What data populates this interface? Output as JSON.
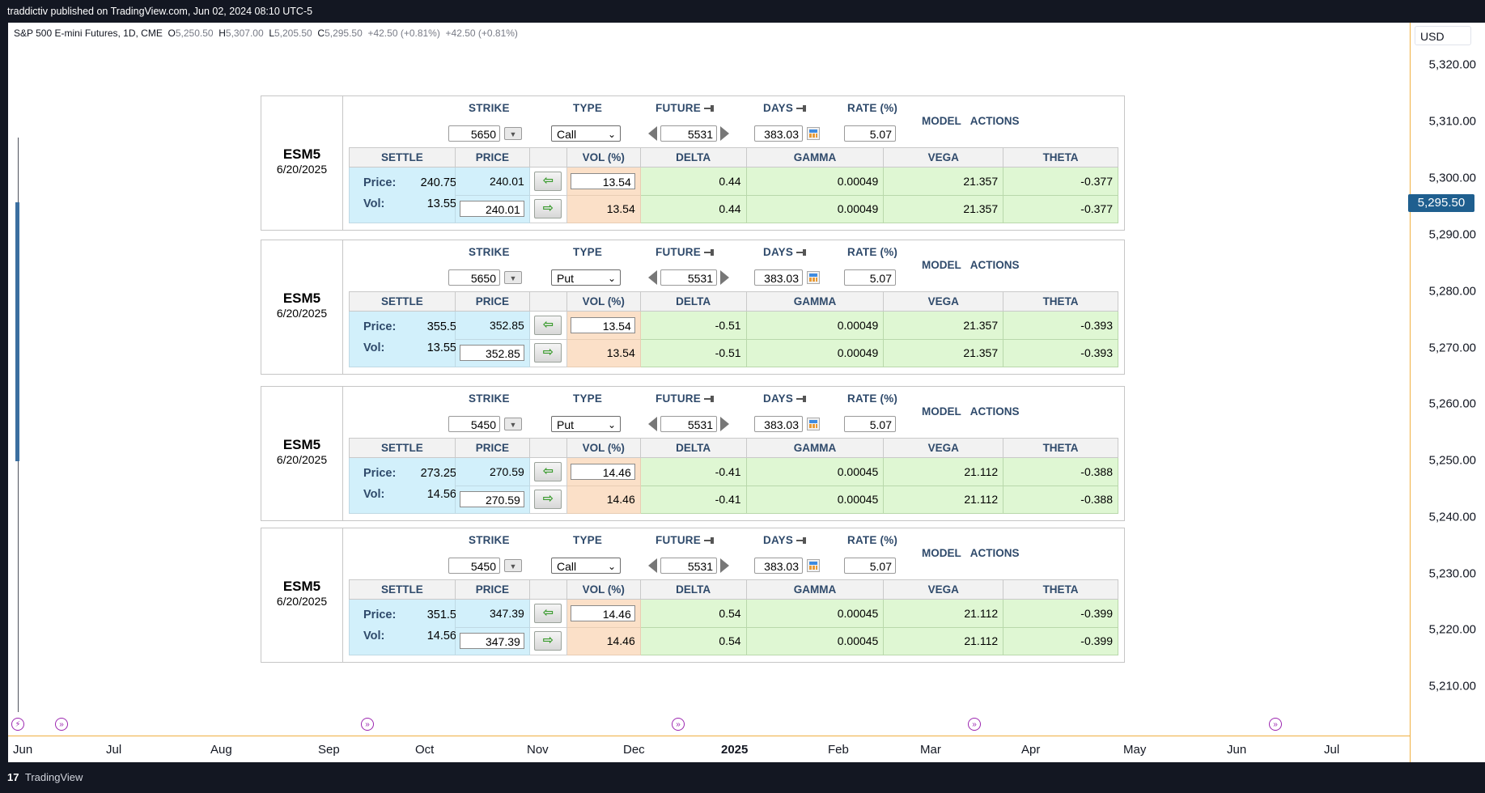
{
  "topbar": {
    "text": "traddictiv published on TradingView.com, Jun 02, 2024 08:10 UTC-5"
  },
  "symbol_header": {
    "title": "S&P 500 E-mini Futures, 1D, CME",
    "o_label": "O",
    "o": "5,250.50",
    "h_label": "H",
    "h": "5,307.00",
    "l_label": "L",
    "l": "5,205.50",
    "c_label": "C",
    "c": "5,295.50",
    "change": "+42.50 (+0.81%)",
    "change2": "+42.50 (+0.81%)"
  },
  "price_axis": {
    "currency": "USD",
    "ticks": [
      "5,320.00",
      "5,310.00",
      "5,300.00",
      "5,290.00",
      "5,280.00",
      "5,270.00",
      "5,260.00",
      "5,250.00",
      "5,240.00",
      "5,230.00",
      "5,220.00",
      "5,210.00"
    ],
    "current": "5,295.50",
    "current_color": "#1f5f8f"
  },
  "time_axis": {
    "labels": [
      "Jun",
      "Jul",
      "Aug",
      "Sep",
      "Oct",
      "Nov",
      "Dec",
      "2025",
      "Feb",
      "Mar",
      "Apr",
      "May",
      "Jun",
      "Jul"
    ]
  },
  "footer": {
    "brand": "TradingView"
  },
  "calculator": {
    "headers": {
      "strike": "STRIKE",
      "type": "TYPE",
      "future": "FUTURE",
      "days": "DAYS",
      "rate": "RATE (%)",
      "model": "MODEL",
      "actions": "ACTIONS"
    },
    "grid_headers": {
      "settle": "SETTLE",
      "price": "PRICE",
      "vol": "VOL (%)",
      "delta": "DELTA",
      "gamma": "GAMMA",
      "vega": "VEGA",
      "theta": "THETA"
    },
    "settle_labels": {
      "price": "Price:",
      "vol": "Vol:"
    },
    "panels": [
      {
        "symbol": "ESM5",
        "expiry": "6/20/2025",
        "strike": "5650",
        "type": "Call",
        "future": "5531",
        "days": "383.03",
        "rate": "5.07",
        "settle_price": "240.75",
        "settle_vol": "13.55",
        "row1": {
          "price": "240.01",
          "vol": "13.54",
          "delta": "0.44",
          "gamma": "0.00049",
          "vega": "21.357",
          "theta": "-0.377"
        },
        "row2": {
          "price": "240.01",
          "vol": "13.54",
          "delta": "0.44",
          "gamma": "0.00049",
          "vega": "21.357",
          "theta": "-0.377"
        }
      },
      {
        "symbol": "ESM5",
        "expiry": "6/20/2025",
        "strike": "5650",
        "type": "Put",
        "future": "5531",
        "days": "383.03",
        "rate": "5.07",
        "settle_price": "355.5",
        "settle_vol": "13.55",
        "row1": {
          "price": "352.85",
          "vol": "13.54",
          "delta": "-0.51",
          "gamma": "0.00049",
          "vega": "21.357",
          "theta": "-0.393"
        },
        "row2": {
          "price": "352.85",
          "vol": "13.54",
          "delta": "-0.51",
          "gamma": "0.00049",
          "vega": "21.357",
          "theta": "-0.393"
        }
      },
      {
        "symbol": "ESM5",
        "expiry": "6/20/2025",
        "strike": "5450",
        "type": "Put",
        "future": "5531",
        "days": "383.03",
        "rate": "5.07",
        "settle_price": "273.25",
        "settle_vol": "14.56",
        "row1": {
          "price": "270.59",
          "vol": "14.46",
          "delta": "-0.41",
          "gamma": "0.00045",
          "vega": "21.112",
          "theta": "-0.388"
        },
        "row2": {
          "price": "270.59",
          "vol": "14.46",
          "delta": "-0.41",
          "gamma": "0.00045",
          "vega": "21.112",
          "theta": "-0.388"
        }
      },
      {
        "symbol": "ESM5",
        "expiry": "6/20/2025",
        "strike": "5450",
        "type": "Call",
        "future": "5531",
        "days": "383.03",
        "rate": "5.07",
        "settle_price": "351.5",
        "settle_vol": "14.56",
        "row1": {
          "price": "347.39",
          "vol": "14.46",
          "delta": "0.54",
          "gamma": "0.00045",
          "vega": "21.112",
          "theta": "-0.399"
        },
        "row2": {
          "price": "347.39",
          "vol": "14.46",
          "delta": "0.54",
          "gamma": "0.00045",
          "vega": "21.112",
          "theta": "-0.399"
        }
      }
    ]
  }
}
